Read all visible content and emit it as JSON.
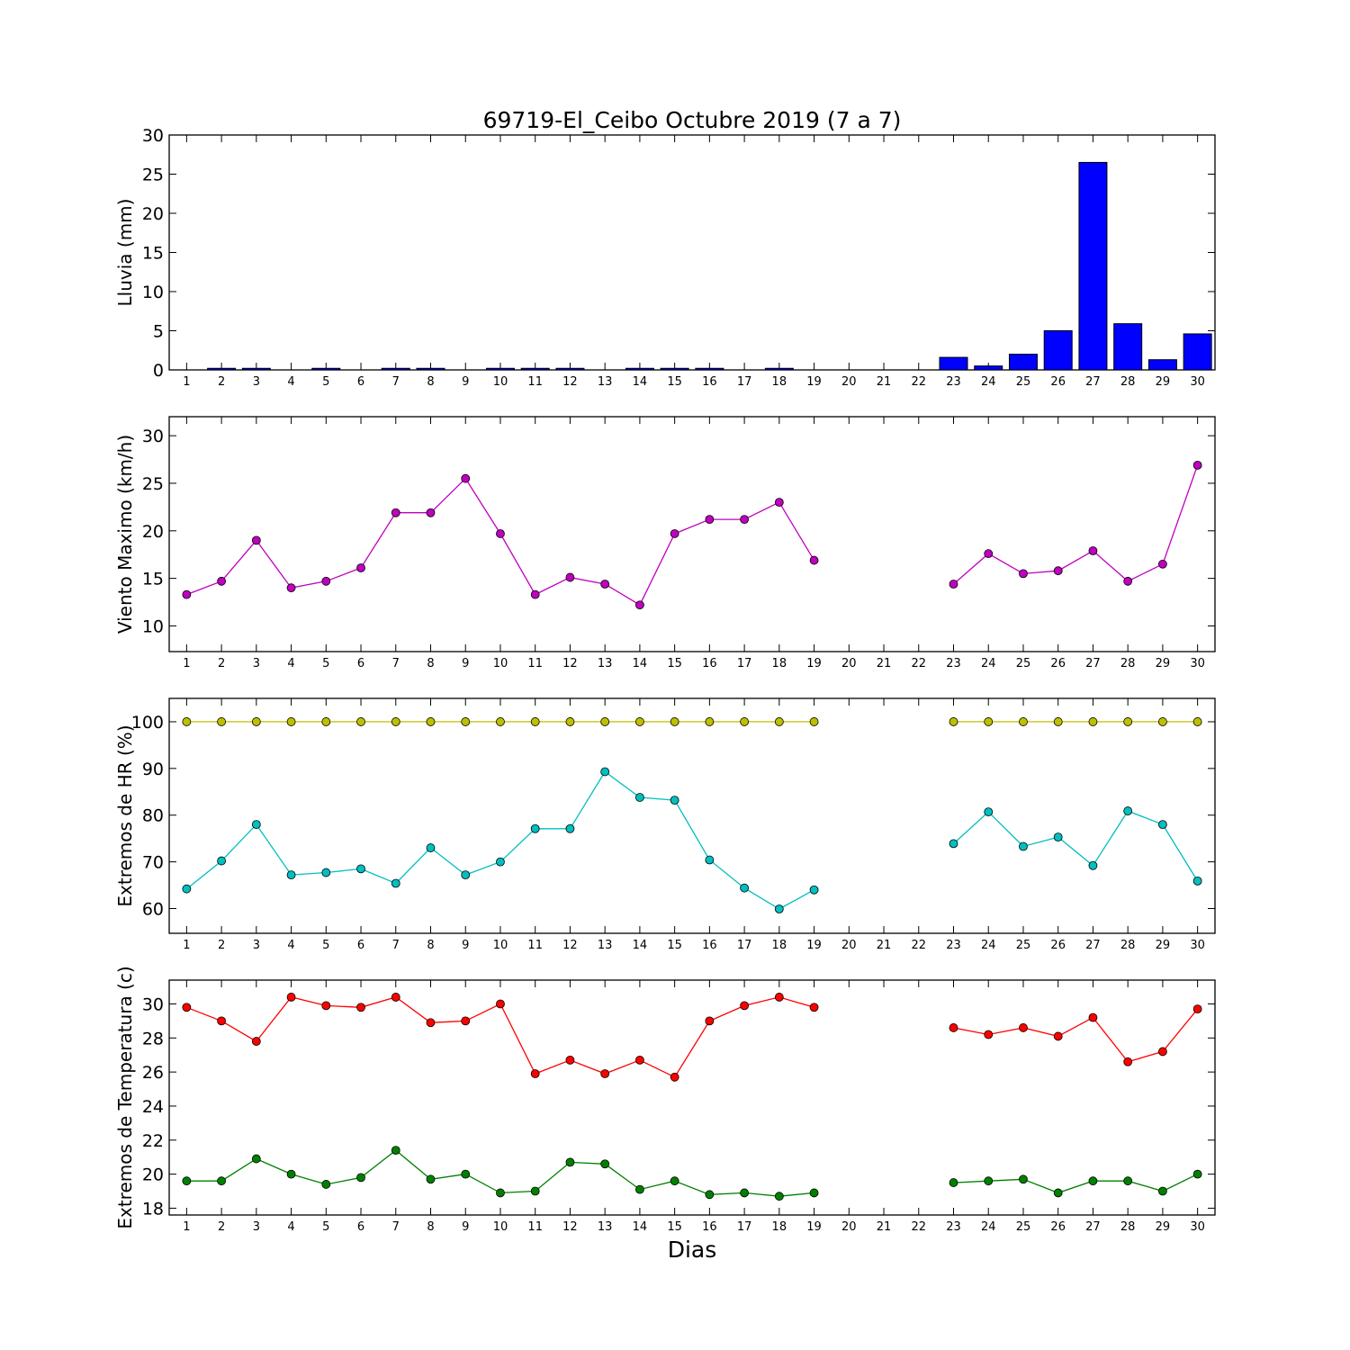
{
  "figure": {
    "title": "69719-El_Ceibo Octubre 2019  (7 a 7)",
    "xlabel": "Dias"
  },
  "chart_data": [
    {
      "type": "bar",
      "ylabel": "Lluvia (mm)",
      "ylim": [
        0,
        30
      ],
      "yticks": [
        0,
        5,
        10,
        15,
        20,
        25,
        30
      ],
      "categories": [
        1,
        2,
        3,
        4,
        5,
        6,
        7,
        8,
        9,
        10,
        11,
        12,
        13,
        14,
        15,
        16,
        17,
        18,
        19,
        20,
        21,
        22,
        23,
        24,
        25,
        26,
        27,
        28,
        29,
        30
      ],
      "series": [
        {
          "color": "#0000ff",
          "values": [
            0,
            0.2,
            0.2,
            0,
            0.2,
            0,
            0.2,
            0.2,
            0,
            0.2,
            0.2,
            0.2,
            0,
            0.2,
            0.2,
            0.2,
            0,
            0.2,
            0,
            0,
            0,
            0,
            1.6,
            0.5,
            2.0,
            5.0,
            26.5,
            5.9,
            1.3,
            4.6
          ]
        }
      ]
    },
    {
      "type": "line",
      "ylabel": "Viento Maximo (km/h)",
      "ylim": [
        7.3,
        32
      ],
      "yticks": [
        10,
        15,
        20,
        25,
        30
      ],
      "categories": [
        1,
        2,
        3,
        4,
        5,
        6,
        7,
        8,
        9,
        10,
        11,
        12,
        13,
        14,
        15,
        16,
        17,
        18,
        19,
        20,
        21,
        22,
        23,
        24,
        25,
        26,
        27,
        28,
        29,
        30
      ],
      "series": [
        {
          "color": "#bf00bf",
          "values": [
            13.3,
            14.7,
            19.0,
            14.0,
            14.7,
            16.1,
            21.9,
            21.9,
            25.5,
            19.7,
            13.3,
            15.1,
            14.4,
            12.2,
            19.7,
            21.2,
            21.2,
            23.0,
            16.9,
            null,
            null,
            null,
            14.4,
            17.6,
            15.5,
            15.8,
            17.9,
            14.7,
            16.5,
            26.9
          ]
        }
      ]
    },
    {
      "type": "line",
      "ylabel": "Extremos de HR (%)",
      "ylim": [
        54.7,
        105
      ],
      "yticks": [
        60,
        70,
        80,
        90,
        100
      ],
      "categories": [
        1,
        2,
        3,
        4,
        5,
        6,
        7,
        8,
        9,
        10,
        11,
        12,
        13,
        14,
        15,
        16,
        17,
        18,
        19,
        20,
        21,
        22,
        23,
        24,
        25,
        26,
        27,
        28,
        29,
        30
      ],
      "series": [
        {
          "color": "#bfbf00",
          "values": [
            100,
            100,
            100,
            100,
            100,
            100,
            100,
            100,
            100,
            100,
            100,
            100,
            100,
            100,
            100,
            100,
            100,
            100,
            100,
            null,
            null,
            null,
            100,
            100,
            100,
            100,
            100,
            100,
            100,
            100
          ]
        },
        {
          "color": "#00bfbf",
          "values": [
            64.2,
            70.2,
            78.0,
            67.2,
            67.7,
            68.5,
            65.4,
            73.0,
            67.2,
            70.0,
            77.1,
            77.1,
            89.3,
            83.8,
            83.2,
            70.4,
            64.4,
            59.9,
            64.0,
            null,
            null,
            null,
            73.9,
            80.7,
            73.3,
            75.3,
            69.2,
            80.9,
            78.0,
            65.9
          ]
        }
      ]
    },
    {
      "type": "line",
      "ylabel": "Extremos de Temperatura (c)",
      "ylim": [
        17.6,
        31.4
      ],
      "yticks": [
        18,
        20,
        22,
        24,
        26,
        28,
        30
      ],
      "categories": [
        1,
        2,
        3,
        4,
        5,
        6,
        7,
        8,
        9,
        10,
        11,
        12,
        13,
        14,
        15,
        16,
        17,
        18,
        19,
        20,
        21,
        22,
        23,
        24,
        25,
        26,
        27,
        28,
        29,
        30
      ],
      "series": [
        {
          "color": "#ff0000",
          "values": [
            29.8,
            29.0,
            27.8,
            30.4,
            29.9,
            29.8,
            30.4,
            28.9,
            29.0,
            30.0,
            25.9,
            26.7,
            25.9,
            26.7,
            25.7,
            29.0,
            29.9,
            30.4,
            29.8,
            null,
            null,
            null,
            28.6,
            28.2,
            28.6,
            28.1,
            29.2,
            26.6,
            27.2,
            29.7
          ]
        },
        {
          "color": "#008000",
          "values": [
            19.6,
            19.6,
            20.9,
            20.0,
            19.4,
            19.8,
            21.4,
            19.7,
            20.0,
            18.9,
            19.0,
            20.7,
            20.6,
            19.1,
            19.6,
            18.8,
            18.9,
            18.7,
            18.9,
            null,
            null,
            null,
            19.5,
            19.6,
            19.7,
            18.9,
            19.6,
            19.6,
            19.0,
            20.0
          ]
        }
      ]
    }
  ]
}
